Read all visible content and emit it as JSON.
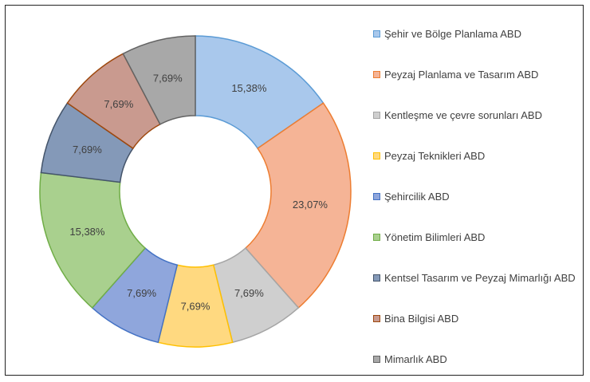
{
  "chart_data": {
    "type": "donut",
    "categories": [
      "Şehir ve Bölge Planlama ABD",
      "Peyzaj Planlama ve Tasarım ABD",
      "Kentleşme ve çevre sorunları ABD",
      "Peyzaj Teknikleri ABD",
      "Şehircilik ABD",
      "Yönetim Bilimleri ABD",
      "Kentsel Tasarım ve Peyzaj Mimarlığı ABD",
      "Bina Bilgisi ABD",
      "Mimarlık ABD"
    ],
    "values": [
      15.38,
      23.07,
      7.69,
      7.69,
      7.69,
      15.38,
      7.69,
      7.69,
      7.69
    ],
    "value_labels": [
      "15,38%",
      "23,07%",
      "7,69%",
      "7,69%",
      "7,69%",
      "15,38%",
      "7,69%",
      "7,69%",
      "7,69%"
    ],
    "colors": [
      "#a9c8ec",
      "#f5b496",
      "#cfcfcf",
      "#ffd980",
      "#8fa6dc",
      "#a9d08e",
      "#8499b8",
      "#c99a8f",
      "#a8a8a8"
    ],
    "edge_colors": [
      "#5b9bd5",
      "#ed7d31",
      "#a5a5a5",
      "#ffc000",
      "#4472c4",
      "#70ad47",
      "#44546a",
      "#9e480e",
      "#636363"
    ],
    "legend": "right"
  }
}
